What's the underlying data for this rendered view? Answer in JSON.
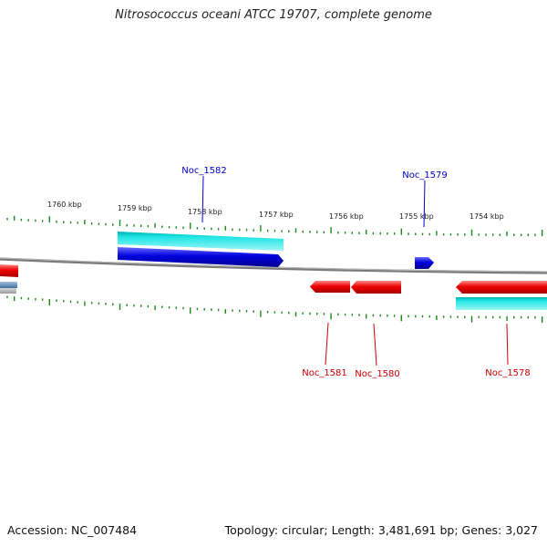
{
  "header": {
    "title": "Nitrosococcus oceani ATCC 19707, complete genome"
  },
  "footer": {
    "accession": "Accession: NC_007484",
    "summary": "Topology: circular; Length: 3,481,691 bp; Genes: 3,027"
  },
  "scale": {
    "unit_labels": [
      "1760 kbp",
      "1759 kbp",
      "1758 kbp",
      "1757 kbp",
      "1756 kbp",
      "1755 kbp",
      "1754 kbp"
    ]
  },
  "genes": {
    "forward": [
      {
        "label": "Noc_1582",
        "color": "#0000cc"
      },
      {
        "label": "Noc_1579",
        "color": "#0000cc"
      }
    ],
    "reverse": [
      {
        "label": "Noc_1581",
        "color": "#cc0000"
      },
      {
        "label": "Noc_1580",
        "color": "#cc0000"
      },
      {
        "label": "Noc_1578",
        "color": "#cc0000"
      }
    ]
  },
  "colors": {
    "forward_gene": "#0000dd",
    "reverse_gene": "#ee0000",
    "cds_feature": "#00d8d8",
    "backbone": "#808080",
    "tick": "#1a8a1a"
  }
}
